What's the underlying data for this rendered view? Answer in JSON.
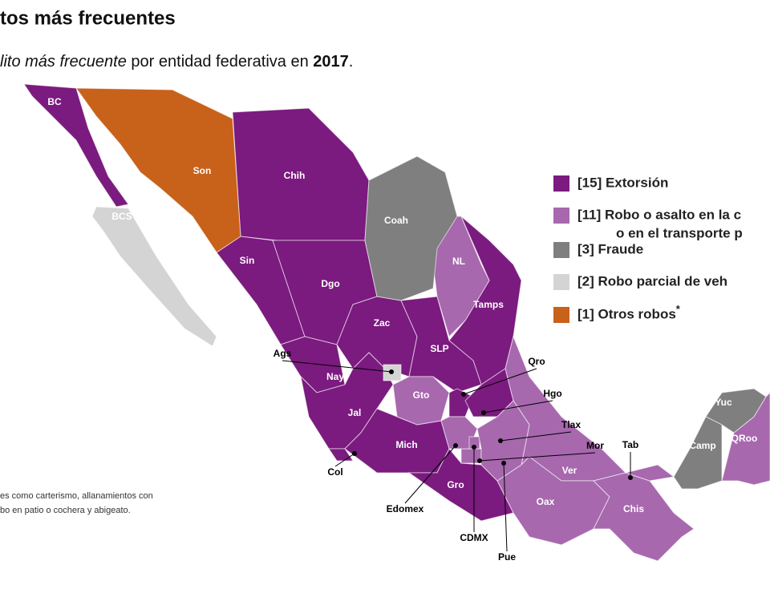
{
  "header": {
    "title": "tos más frecuentes",
    "subtitle": {
      "italic": "lito más frecuente",
      "plain": "por entidad federativa en",
      "bold": "2017",
      "end": "."
    }
  },
  "legend": {
    "items": [
      {
        "lines": [
          "[15] Extorsión"
        ],
        "color": "#7b1a7f",
        "states": [
          "BC",
          "Chih",
          "Sin",
          "Dgo",
          "Tamps",
          "Zac",
          "SLP",
          "Qro",
          "Nay",
          "Hgo",
          "Jal",
          "Tlax",
          "Mich",
          "Col",
          "Gro"
        ]
      },
      {
        "lines": [
          "[11] Robo o asalto en la c",
          "o en el transporte p"
        ],
        "color": "#a768ae",
        "states": [
          "NL",
          "Gto",
          "Mor",
          "Ver",
          "Oax",
          "Chis",
          "QRoo",
          "Edomex",
          "CDMX",
          "Pue",
          "Tab"
        ]
      },
      {
        "lines": [
          "[3] Fraude"
        ],
        "color": "#7f7f7f",
        "states": [
          "Coah",
          "Yuc",
          "Camp"
        ]
      },
      {
        "lines": [
          "[2] Robo parcial de veh"
        ],
        "color": "#d4d4d4",
        "states": [
          "BCS",
          "Ags"
        ]
      },
      {
        "lines": [
          "[1] Otros robos"
        ],
        "mark": "*",
        "color": "#c8611a",
        "states": [
          "Son"
        ]
      }
    ]
  },
  "footnote": {
    "lines": [
      "es como carterismo, allanamientos con",
      "bo en patio o cochera y abigeato."
    ]
  }
}
